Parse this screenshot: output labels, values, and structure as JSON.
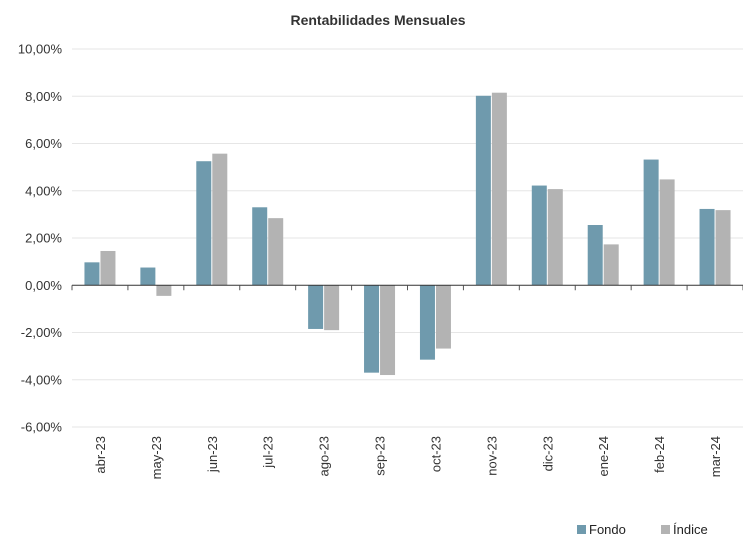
{
  "chart_data": {
    "type": "bar",
    "title": "Rentabilidades Mensuales",
    "xlabel": "",
    "ylabel": "",
    "categories": [
      "abr-23",
      "may-23",
      "jun-23",
      "jul-23",
      "ago-23",
      "sep-23",
      "oct-23",
      "nov-23",
      "dic-23",
      "ene-24",
      "feb-24",
      "mar-24"
    ],
    "series": [
      {
        "name": "Fondo",
        "color": "#6f9aad",
        "values": [
          0.97,
          0.75,
          5.25,
          3.3,
          -1.85,
          -3.7,
          -3.15,
          8.02,
          4.22,
          2.55,
          5.32,
          3.23
        ]
      },
      {
        "name": "Índice",
        "color": "#b3b3b3",
        "values": [
          1.45,
          -0.45,
          5.57,
          2.84,
          -1.9,
          -3.8,
          -2.68,
          8.15,
          4.07,
          1.73,
          4.48,
          3.18
        ]
      }
    ],
    "ylim": [
      -6,
      10
    ],
    "yticks": [
      10,
      8,
      6,
      4,
      2,
      0,
      -2,
      -4,
      -6
    ],
    "ytick_labels": [
      "10,00%",
      "8,00%",
      "6,00%",
      "4,00%",
      "2,00%",
      "0,00%",
      "-2,00%",
      "-4,00%",
      "-6,00%"
    ],
    "grid": true,
    "legend_position": "bottom-right"
  }
}
